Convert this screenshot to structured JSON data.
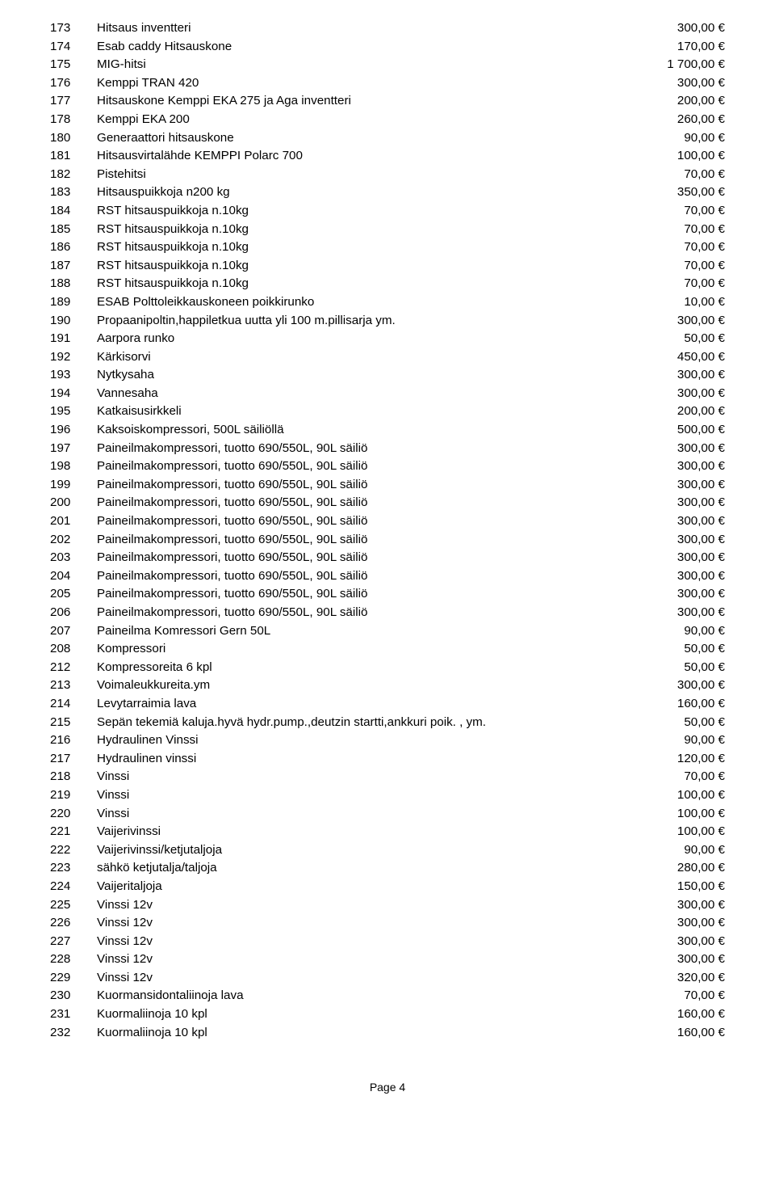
{
  "currency": "€",
  "footer": "Page 4",
  "rows": [
    {
      "n": "173",
      "desc": "Hitsaus inventteri",
      "price": "300,00"
    },
    {
      "n": "174",
      "desc": "Esab caddy Hitsauskone",
      "price": "170,00"
    },
    {
      "n": "175",
      "desc": "MIG-hitsi",
      "price": "1 700,00"
    },
    {
      "n": "176",
      "desc": "Kemppi TRAN 420",
      "price": "300,00"
    },
    {
      "n": "177",
      "desc": "Hitsauskone Kemppi EKA 275 ja Aga inventteri",
      "price": "200,00"
    },
    {
      "n": "178",
      "desc": "Kemppi EKA 200",
      "price": "260,00"
    },
    {
      "n": "180",
      "desc": "Generaattori hitsauskone",
      "price": "90,00"
    },
    {
      "n": "181",
      "desc": "Hitsausvirtalähde KEMPPI Polarc 700",
      "price": "100,00"
    },
    {
      "n": "182",
      "desc": "Pistehitsi",
      "price": "70,00"
    },
    {
      "n": "183",
      "desc": "Hitsauspuikkoja n200 kg",
      "price": "350,00"
    },
    {
      "n": "184",
      "desc": "RST hitsauspuikkoja n.10kg",
      "price": "70,00"
    },
    {
      "n": "185",
      "desc": "RST hitsauspuikkoja n.10kg",
      "price": "70,00"
    },
    {
      "n": "186",
      "desc": "RST hitsauspuikkoja n.10kg",
      "price": "70,00"
    },
    {
      "n": "187",
      "desc": "RST hitsauspuikkoja n.10kg",
      "price": "70,00"
    },
    {
      "n": "188",
      "desc": "RST hitsauspuikkoja n.10kg",
      "price": "70,00"
    },
    {
      "n": "189",
      "desc": "ESAB Polttoleikkauskoneen poikkirunko",
      "price": "10,00"
    },
    {
      "n": "190",
      "desc": "Propaanipoltin,happiletkua uutta yli 100 m.pillisarja ym.",
      "price": "300,00"
    },
    {
      "n": "191",
      "desc": "Aarpora runko",
      "price": "50,00"
    },
    {
      "n": "192",
      "desc": "Kärkisorvi",
      "price": "450,00"
    },
    {
      "n": "193",
      "desc": "Nytkysaha",
      "price": "300,00"
    },
    {
      "n": "194",
      "desc": "Vannesaha",
      "price": "300,00"
    },
    {
      "n": "195",
      "desc": "Katkaisusirkkeli",
      "price": "200,00"
    },
    {
      "n": "196",
      "desc": "Kaksoiskompressori, 500L säiliöllä",
      "price": "500,00"
    },
    {
      "n": "197",
      "desc": "Paineilmakompressori, tuotto 690/550L, 90L säiliö",
      "price": "300,00"
    },
    {
      "n": "198",
      "desc": "Paineilmakompressori, tuotto 690/550L, 90L säiliö",
      "price": "300,00"
    },
    {
      "n": "199",
      "desc": "Paineilmakompressori, tuotto 690/550L, 90L säiliö",
      "price": "300,00"
    },
    {
      "n": "200",
      "desc": "Paineilmakompressori, tuotto 690/550L, 90L säiliö",
      "price": "300,00"
    },
    {
      "n": "201",
      "desc": "Paineilmakompressori, tuotto 690/550L, 90L säiliö",
      "price": "300,00"
    },
    {
      "n": "202",
      "desc": "Paineilmakompressori, tuotto 690/550L, 90L säiliö",
      "price": "300,00"
    },
    {
      "n": "203",
      "desc": "Paineilmakompressori, tuotto 690/550L, 90L säiliö",
      "price": "300,00"
    },
    {
      "n": "204",
      "desc": "Paineilmakompressori, tuotto 690/550L, 90L säiliö",
      "price": "300,00"
    },
    {
      "n": "205",
      "desc": "Paineilmakompressori, tuotto 690/550L, 90L säiliö",
      "price": "300,00"
    },
    {
      "n": "206",
      "desc": "Paineilmakompressori, tuotto 690/550L, 90L säiliö",
      "price": "300,00"
    },
    {
      "n": "207",
      "desc": "Paineilma Komressori Gern 50L",
      "price": "90,00"
    },
    {
      "n": "208",
      "desc": "Kompressori",
      "price": "50,00"
    },
    {
      "n": "212",
      "desc": "Kompressoreita 6 kpl",
      "price": "50,00"
    },
    {
      "n": "213",
      "desc": "Voimaleukkureita.ym",
      "price": "300,00"
    },
    {
      "n": "214",
      "desc": "Levytarraimia lava",
      "price": "160,00"
    },
    {
      "n": "215",
      "desc": "Sepän tekemiä kaluja.hyvä hydr.pump.,deutzin startti,ankkuri poik. , ym.",
      "price": "50,00"
    },
    {
      "n": "216",
      "desc": "Hydraulinen Vinssi",
      "price": "90,00"
    },
    {
      "n": "217",
      "desc": "Hydraulinen vinssi",
      "price": "120,00"
    },
    {
      "n": "218",
      "desc": "Vinssi",
      "price": "70,00"
    },
    {
      "n": "219",
      "desc": "Vinssi",
      "price": "100,00"
    },
    {
      "n": "220",
      "desc": "Vinssi",
      "price": "100,00"
    },
    {
      "n": "221",
      "desc": "Vaijerivinssi",
      "price": "100,00"
    },
    {
      "n": "222",
      "desc": "Vaijerivinssi/ketjutaljoja",
      "price": "90,00"
    },
    {
      "n": "223",
      "desc": "sähkö ketjutalja/taljoja",
      "price": "280,00"
    },
    {
      "n": "224",
      "desc": "Vaijeritaljoja",
      "price": "150,00"
    },
    {
      "n": "225",
      "desc": "Vinssi 12v",
      "price": "300,00"
    },
    {
      "n": "226",
      "desc": "Vinssi 12v",
      "price": "300,00"
    },
    {
      "n": "227",
      "desc": "Vinssi 12v",
      "price": "300,00"
    },
    {
      "n": "228",
      "desc": "Vinssi 12v",
      "price": "300,00"
    },
    {
      "n": "229",
      "desc": "Vinssi 12v",
      "price": "320,00"
    },
    {
      "n": "230",
      "desc": "Kuormansidontaliinoja lava",
      "price": "70,00"
    },
    {
      "n": "231",
      "desc": "Kuormaliinoja 10 kpl",
      "price": "160,00"
    },
    {
      "n": "232",
      "desc": "Kuormaliinoja 10 kpl",
      "price": "160,00"
    }
  ]
}
